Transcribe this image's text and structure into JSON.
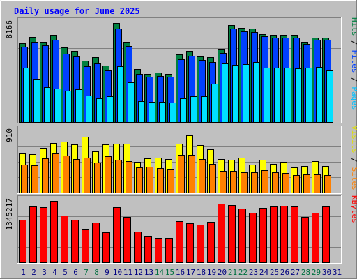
{
  "chart_data": {
    "type": "bar",
    "title": "Daily usage for June 2025",
    "categories": [
      "1",
      "2",
      "3",
      "4",
      "5",
      "6",
      "7",
      "8",
      "9",
      "10",
      "11",
      "12",
      "13",
      "14",
      "15",
      "16",
      "17",
      "18",
      "19",
      "20",
      "21",
      "22",
      "23",
      "24",
      "25",
      "26",
      "27",
      "28",
      "29",
      "30",
      "31"
    ],
    "weekend_days": [
      "7",
      "8",
      "14",
      "15",
      "21",
      "22",
      "28",
      "29"
    ],
    "panels": [
      {
        "id": "hits-files-pages",
        "ymax_label": "8166",
        "ylim": [
          0,
          8166
        ],
        "legend": [
          "Pages",
          "Files",
          "Hits"
        ],
        "series": [
          {
            "name": "Hits",
            "color": "#008040",
            "values": [
              6520,
              7000,
              6640,
              7200,
              6140,
              5840,
              5040,
              5320,
              4680,
              8166,
              6600,
              4380,
              3980,
              4080,
              3940,
              5600,
              5880,
              5420,
              5360,
              6020,
              8000,
              7760,
              7700,
              7240,
              7200,
              7210,
              7180,
              6640,
              6940,
              6960,
              null
            ]
          },
          {
            "name": "Files",
            "color": "#0040ff",
            "values": [
              6200,
              6600,
              6340,
              6800,
              5660,
              5380,
              4620,
              4840,
              4280,
              7700,
              6280,
              3980,
              3740,
              3780,
              3740,
              5160,
              5480,
              5120,
              4970,
              5720,
              7680,
              7500,
              7400,
              7050,
              6960,
              6960,
              6950,
              6460,
              6760,
              6760,
              null
            ]
          },
          {
            "name": "Pages",
            "color": "#00e0ff",
            "values": [
              4480,
              3540,
              2860,
              2740,
              2580,
              2680,
              2160,
              1960,
              2120,
              4620,
              3300,
              1720,
              1660,
              1640,
              1620,
              1960,
              2140,
              2120,
              3160,
              4840,
              4720,
              4760,
              4920,
              4460,
              4460,
              4460,
              4450,
              4460,
              4540,
              4260,
              null
            ]
          }
        ]
      },
      {
        "id": "visits-sites",
        "ymax_label": "910",
        "ylim": [
          0,
          910
        ],
        "legend": [
          "Sites",
          "Visits"
        ],
        "series": [
          {
            "name": "Visits",
            "color": "#ffff00",
            "values": [
              574,
              572,
              663,
              733,
              754,
              710,
              828,
              614,
              713,
              726,
              726,
              452,
              508,
              512,
              494,
              729,
              853,
              700,
              646,
              500,
              487,
              520,
              416,
              485,
              421,
              453,
              372,
              392,
              462,
              397,
              null
            ]
          },
          {
            "name": "Sites",
            "color": "#ff8000",
            "values": [
              410,
              405,
              504,
              581,
              545,
              498,
              522,
              444,
              533,
              484,
              464,
              377,
              387,
              357,
              345,
              560,
              559,
              493,
              428,
              325,
              319,
              305,
              297,
              327,
              299,
              286,
              255,
              273,
              265,
              256,
              null
            ]
          }
        ]
      },
      {
        "id": "kbytes",
        "ymax_label": "1345217",
        "ylim": [
          0,
          1345217
        ],
        "legend": [
          "KBytes"
        ],
        "series": [
          {
            "name": "KBytes",
            "color": "#ff0000",
            "values": [
              940000,
              1220000,
              1200000,
              1345217,
              1020000,
              940000,
              720000,
              870000,
              660000,
              1210000,
              990000,
              680000,
              560000,
              540000,
              540000,
              900000,
              850000,
              830000,
              880000,
              1280000,
              1250000,
              1180000,
              1080000,
              1190000,
              1230000,
              1240000,
              1230000,
              1000000,
              1080000,
              1220000,
              null
            ]
          }
        ]
      }
    ]
  },
  "colors": {
    "background": "#c0c0c0",
    "title": "#0000ff",
    "weekend_label": "#007040",
    "weekday_label": "#000080",
    "pages_label": "#00c0ff",
    "files_label": "#0040ff",
    "hits_label": "#008040",
    "sites_label": "#ff8000",
    "visits_label": "#e0e000",
    "kbytes_label": "#ff0000"
  }
}
